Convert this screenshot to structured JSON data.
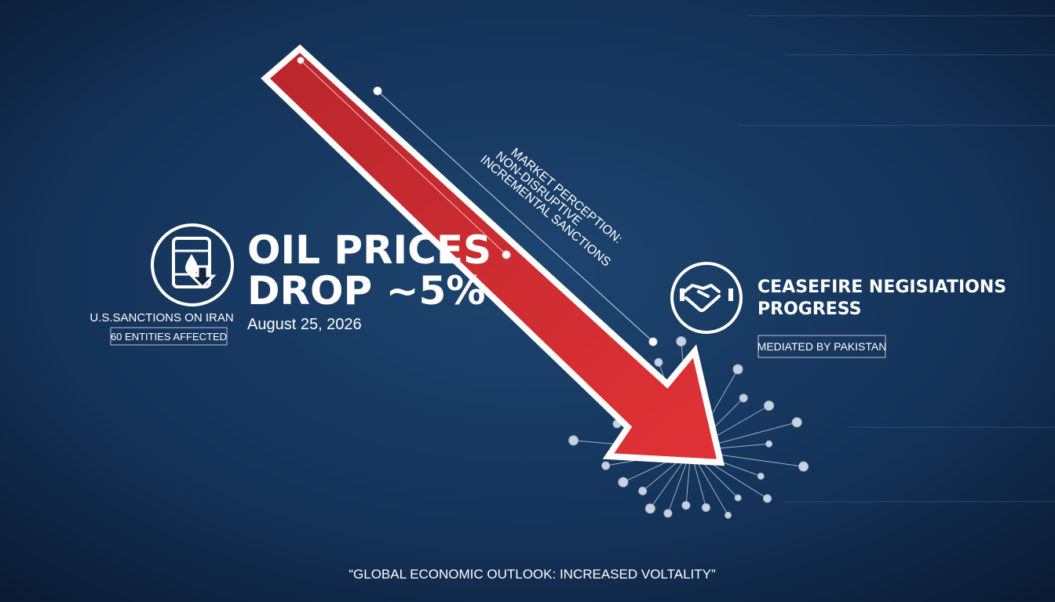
{
  "headline": {
    "line1": "OIL PRICES",
    "line2": "DROP ~5%",
    "date": "August 25, 2026"
  },
  "left_panel": {
    "title": "U.S.SANCTIONS ON IRAN",
    "badge": "60 ENTITIES AFFECTED"
  },
  "annotation": {
    "lines": [
      "MARKET PERCEPTION:",
      "NON-DISRUPTIVE",
      "INCREMENTAL SANCTIONS"
    ]
  },
  "right_panel": {
    "line1": "CEASEFIRE NEGISIATIONS",
    "line2": "PROGRESS",
    "badge": "MEDIATED BY PAKISTAN"
  },
  "footer": {
    "quote": "“GLOBAL ECONOMIC OUTLOOK: INCREASED VOLTALITY”"
  }
}
